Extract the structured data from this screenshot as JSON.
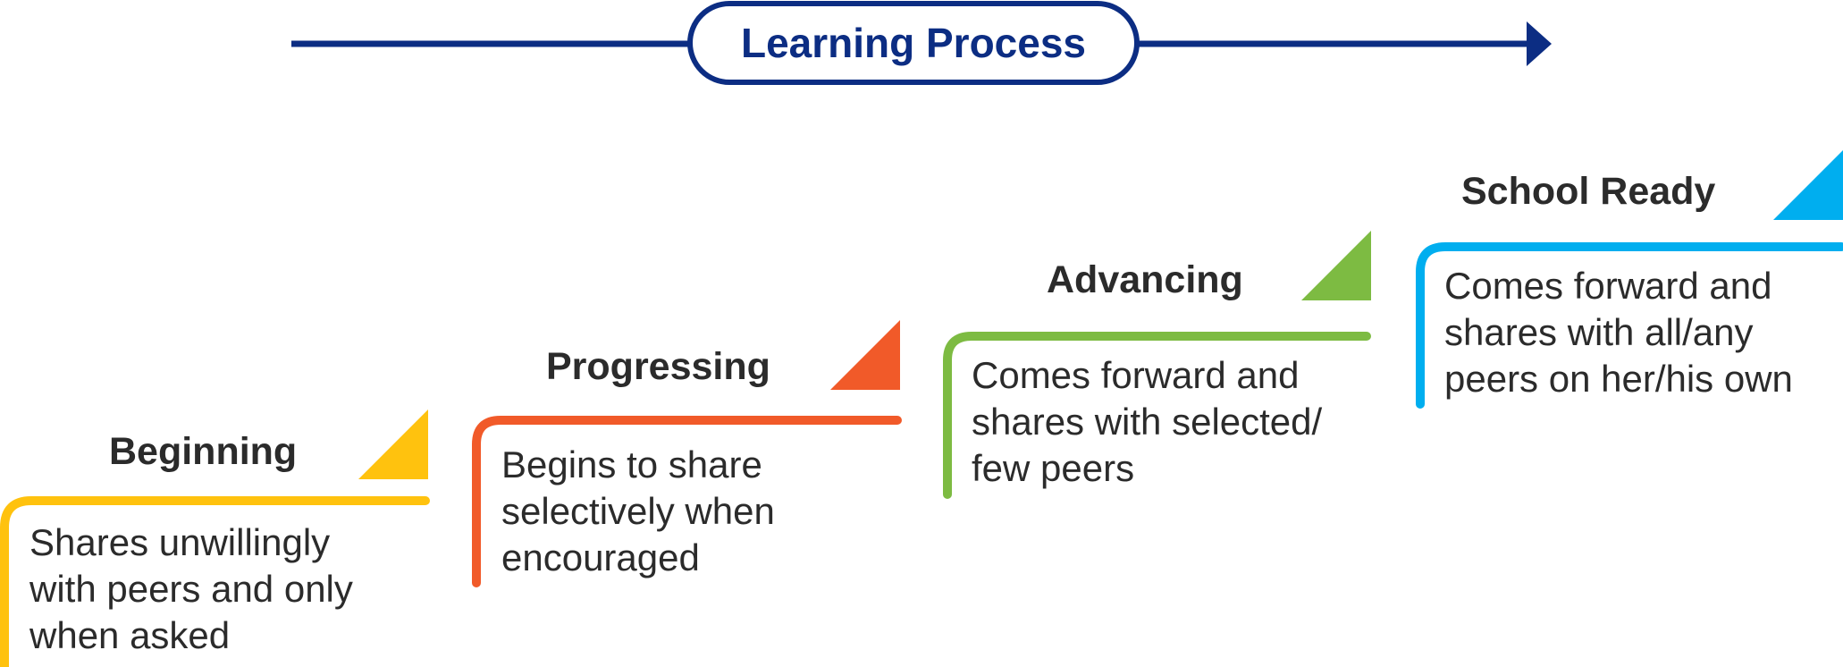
{
  "header": {
    "title": "Learning Process",
    "color": "#0c2d83"
  },
  "stages": [
    {
      "title": "Beginning",
      "description": "Shares unwillingly\nwith peers and only\nwhen asked",
      "color": "#ffc20e"
    },
    {
      "title": "Progressing",
      "description": "Begins to share\nselectively when\nencouraged",
      "color": "#f15a29"
    },
    {
      "title": "Advancing",
      "description": "Comes forward and\nshares with selected/\nfew peers",
      "color": "#7dbb42"
    },
    {
      "title": "School Ready",
      "description": "Comes forward and\nshares with all/any\npeers on her/his own",
      "color": "#00aeef"
    }
  ]
}
